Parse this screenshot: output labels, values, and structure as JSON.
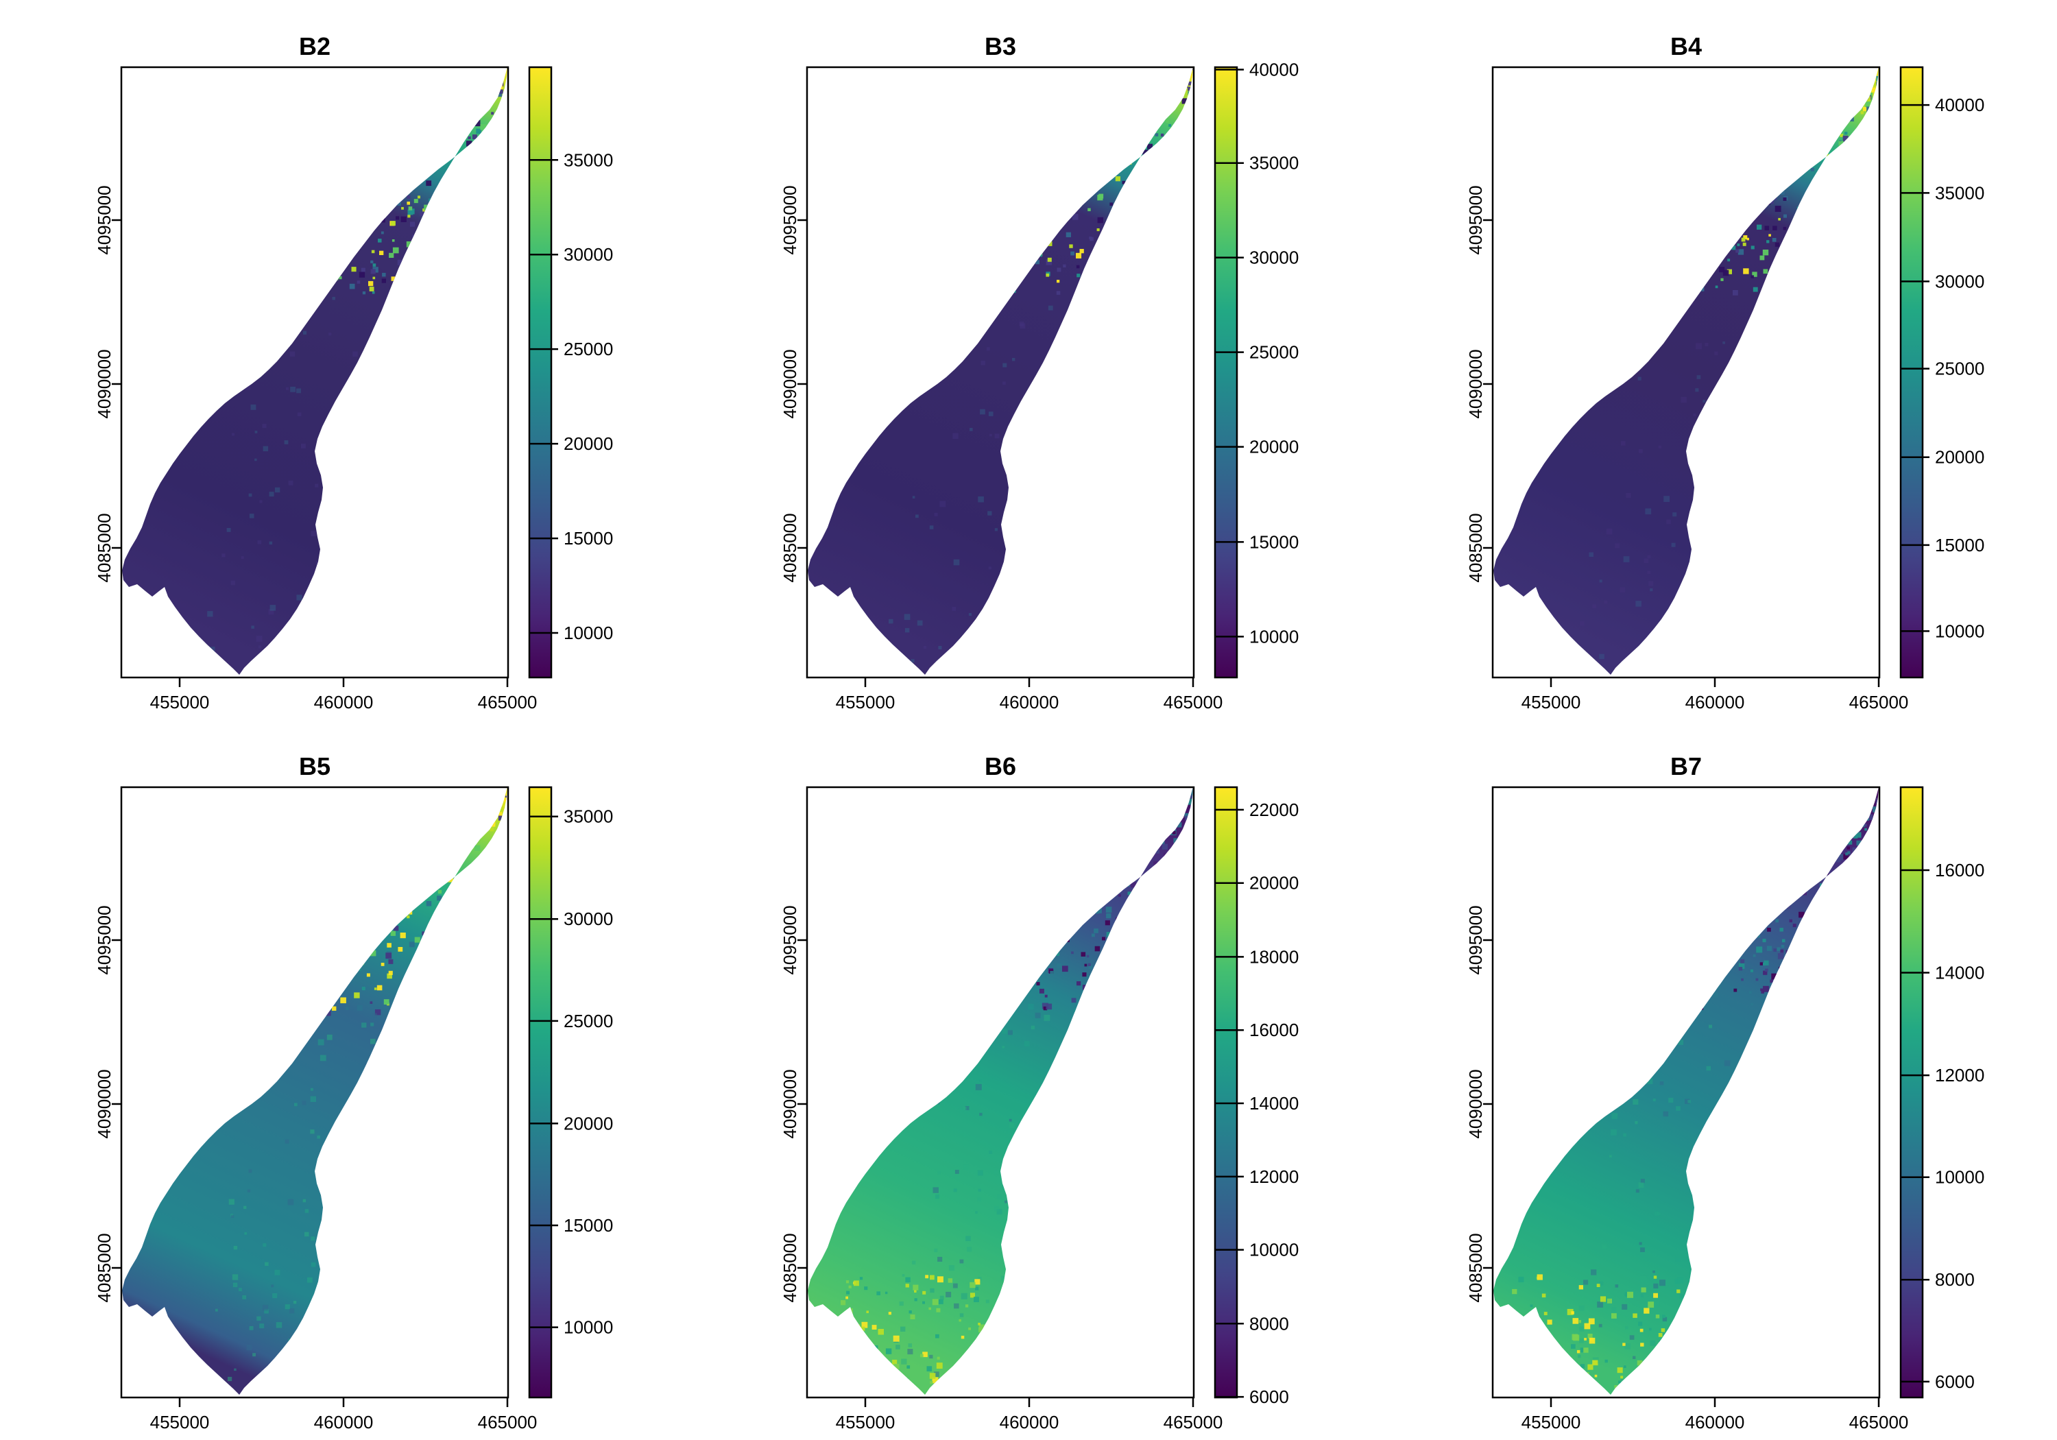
{
  "figure": {
    "title": "",
    "background": "#ffffff",
    "palette_name": "viridis",
    "grid": {
      "rows": 2,
      "cols": 3
    }
  },
  "axes": {
    "x_labels": [
      "455000",
      "460000",
      "465000"
    ],
    "y_labels": [
      "4095000",
      "4090000",
      "4085000"
    ]
  },
  "viridis_stops_top_to_bottom": [
    "#fde725",
    "#bddf26",
    "#7ad151",
    "#44bf70",
    "#22a884",
    "#21918c",
    "#2a788e",
    "#355f8d",
    "#414487",
    "#482475",
    "#440154"
  ],
  "panels": [
    {
      "id": "b2",
      "title": "B2",
      "colorbar_ticks": [
        [
          "35000",
          0.152
        ],
        [
          "30000",
          0.307
        ],
        [
          "25000",
          0.462
        ],
        [
          "20000",
          0.617
        ],
        [
          "15000",
          0.772
        ],
        [
          "10000",
          0.927
        ]
      ],
      "map_gradient": [
        [
          0,
          "#f8e621"
        ],
        [
          0.045,
          "#a8db34"
        ],
        [
          0.1,
          "#4ac16d"
        ],
        [
          0.155,
          "#1fa187"
        ],
        [
          0.21,
          "#277f8e"
        ],
        [
          0.28,
          "#3b2e6e"
        ],
        [
          0.55,
          "#372a68"
        ],
        [
          0.8,
          "#342767"
        ],
        [
          1,
          "#3c2d70"
        ]
      ],
      "speckles": [
        {
          "region": "arm",
          "count": 150,
          "colors": [
            "#fde725",
            "#bddf26",
            "#5ec962",
            "#21918c",
            "#31688e",
            "#443983",
            "#2d1160"
          ],
          "opacity": 0.95
        },
        {
          "region": "body",
          "count": 55,
          "colors": [
            "#453581",
            "#31688e"
          ],
          "opacity": 0.4
        }
      ]
    },
    {
      "id": "b3",
      "title": "B3",
      "colorbar_ticks": [
        [
          "40000",
          0.004
        ],
        [
          "35000",
          0.157
        ],
        [
          "30000",
          0.312
        ],
        [
          "25000",
          0.467
        ],
        [
          "20000",
          0.622
        ],
        [
          "15000",
          0.778
        ],
        [
          "10000",
          0.933
        ]
      ],
      "map_gradient": [
        [
          0,
          "#f8e621"
        ],
        [
          0.045,
          "#a8db34"
        ],
        [
          0.1,
          "#4ac16d"
        ],
        [
          0.155,
          "#1fa187"
        ],
        [
          0.21,
          "#277f8e"
        ],
        [
          0.28,
          "#3a2c6f"
        ],
        [
          0.55,
          "#382a69"
        ],
        [
          0.8,
          "#352768"
        ],
        [
          1,
          "#3c2d70"
        ]
      ],
      "speckles": [
        {
          "region": "arm",
          "count": 150,
          "colors": [
            "#fde725",
            "#bddf26",
            "#5ec962",
            "#21918c",
            "#31688e",
            "#443983",
            "#2d1160"
          ],
          "opacity": 0.95
        },
        {
          "region": "body",
          "count": 55,
          "colors": [
            "#453581",
            "#31688e"
          ],
          "opacity": 0.4
        }
      ]
    },
    {
      "id": "b4",
      "title": "B4",
      "colorbar_ticks": [
        [
          "40000",
          0.062
        ],
        [
          "35000",
          0.206
        ],
        [
          "30000",
          0.351
        ],
        [
          "25000",
          0.494
        ],
        [
          "20000",
          0.639
        ],
        [
          "15000",
          0.783
        ],
        [
          "10000",
          0.924
        ]
      ],
      "map_gradient": [
        [
          0,
          "#f6e51f"
        ],
        [
          0.05,
          "#b5de2b"
        ],
        [
          0.105,
          "#54c568"
        ],
        [
          0.16,
          "#21a585"
        ],
        [
          0.215,
          "#2a788e"
        ],
        [
          0.285,
          "#3a2a6b"
        ],
        [
          0.55,
          "#382967"
        ],
        [
          0.8,
          "#362a6d"
        ],
        [
          1,
          "#3e3175"
        ]
      ],
      "speckles": [
        {
          "region": "arm",
          "count": 150,
          "colors": [
            "#fde725",
            "#bddf26",
            "#5ec962",
            "#21918c",
            "#31688e",
            "#443983",
            "#2d1160"
          ],
          "opacity": 0.95
        },
        {
          "region": "body",
          "count": 55,
          "colors": [
            "#46327e",
            "#355f8d"
          ],
          "opacity": 0.4
        }
      ]
    },
    {
      "id": "b5",
      "title": "B5",
      "colorbar_ticks": [
        [
          "35000",
          0.048
        ],
        [
          "30000",
          0.216
        ],
        [
          "25000",
          0.383
        ],
        [
          "20000",
          0.551
        ],
        [
          "15000",
          0.718
        ],
        [
          "10000",
          0.885
        ]
      ],
      "map_gradient": [
        [
          0,
          "#f8e621"
        ],
        [
          0.05,
          "#bddf26"
        ],
        [
          0.11,
          "#6ece58"
        ],
        [
          0.18,
          "#2ab07f"
        ],
        [
          0.27,
          "#21918c"
        ],
        [
          0.42,
          "#31688e"
        ],
        [
          0.62,
          "#2a788e"
        ],
        [
          0.85,
          "#24868e"
        ],
        [
          0.96,
          "#355f8d"
        ],
        [
          1,
          "#3b2d6e"
        ]
      ],
      "speckles": [
        {
          "region": "arm",
          "count": 150,
          "colors": [
            "#fde725",
            "#bddf26",
            "#5ec962",
            "#21918c",
            "#2c728e",
            "#443983"
          ],
          "opacity": 0.95
        },
        {
          "region": "body",
          "count": 85,
          "colors": [
            "#22a884",
            "#2ab07f",
            "#31688e",
            "#1fa187"
          ],
          "opacity": 0.5
        }
      ]
    },
    {
      "id": "b6",
      "title": "B6",
      "colorbar_ticks": [
        [
          "22000",
          0.037
        ],
        [
          "20000",
          0.157
        ],
        [
          "18000",
          0.278
        ],
        [
          "16000",
          0.398
        ],
        [
          "14000",
          0.518
        ],
        [
          "12000",
          0.638
        ],
        [
          "10000",
          0.758
        ],
        [
          "8000",
          0.879
        ],
        [
          "6000",
          0.999
        ]
      ],
      "map_gradient": [
        [
          0,
          "#440a5c"
        ],
        [
          0.12,
          "#472f7d"
        ],
        [
          0.25,
          "#3b518b"
        ],
        [
          0.38,
          "#26828e"
        ],
        [
          0.55,
          "#21a585"
        ],
        [
          0.75,
          "#2db27d"
        ],
        [
          0.9,
          "#44bf70"
        ],
        [
          1,
          "#58c765"
        ]
      ],
      "speckles": [
        {
          "region": "arm",
          "count": 150,
          "colors": [
            "#440154",
            "#482475",
            "#414487",
            "#2a788e",
            "#21918c"
          ],
          "opacity": 0.9
        },
        {
          "region": "body",
          "count": 90,
          "colors": [
            "#27ad81",
            "#1fa187",
            "#31688e"
          ],
          "opacity": 0.5
        },
        {
          "region": "south",
          "count": 95,
          "colors": [
            "#fde725",
            "#bddf26",
            "#7ad151",
            "#22a884"
          ],
          "opacity": 0.9
        }
      ]
    },
    {
      "id": "b7",
      "title": "B7",
      "colorbar_ticks": [
        [
          "16000",
          0.136
        ],
        [
          "14000",
          0.304
        ],
        [
          "12000",
          0.472
        ],
        [
          "10000",
          0.639
        ],
        [
          "8000",
          0.807
        ],
        [
          "6000",
          0.974
        ]
      ],
      "map_gradient": [
        [
          0,
          "#450b5c"
        ],
        [
          0.12,
          "#462d7c"
        ],
        [
          0.25,
          "#3a538b"
        ],
        [
          0.38,
          "#2c728e"
        ],
        [
          0.58,
          "#24868e"
        ],
        [
          0.78,
          "#21a585"
        ],
        [
          0.92,
          "#2db27d"
        ],
        [
          1,
          "#40bd72"
        ]
      ],
      "speckles": [
        {
          "region": "arm",
          "count": 150,
          "colors": [
            "#440154",
            "#482475",
            "#414487",
            "#2a788e",
            "#21918c"
          ],
          "opacity": 0.9
        },
        {
          "region": "body",
          "count": 90,
          "colors": [
            "#27ad81",
            "#21a585",
            "#31688e"
          ],
          "opacity": 0.5
        },
        {
          "region": "south",
          "count": 95,
          "colors": [
            "#fde725",
            "#bddf26",
            "#7ad151",
            "#22a884"
          ],
          "opacity": 0.9
        }
      ]
    }
  ],
  "chart_data": [
    {
      "type": "heatmap",
      "title": "B2",
      "xlabel": "",
      "ylabel": "",
      "x_ticks": [
        455000,
        460000,
        465000
      ],
      "y_ticks": [
        4085000,
        4090000,
        4095000
      ],
      "colorbar_ticks": [
        10000,
        15000,
        20000,
        25000,
        30000,
        35000
      ],
      "value_range_est": [
        7600,
        39900
      ],
      "palette": "viridis",
      "legend_position": "right-colorbar",
      "grid": false,
      "description": "Raster map of watershed reflectance band B2; dark purple low values over main basin, bright yellow-green high values in northeast arm"
    },
    {
      "type": "heatmap",
      "title": "B3",
      "xlabel": "",
      "ylabel": "",
      "x_ticks": [
        455000,
        460000,
        465000
      ],
      "y_ticks": [
        4085000,
        4090000,
        4095000
      ],
      "colorbar_ticks": [
        10000,
        15000,
        20000,
        25000,
        30000,
        35000,
        40000
      ],
      "value_range_est": [
        7800,
        40100
      ],
      "palette": "viridis",
      "legend_position": "right-colorbar",
      "grid": false,
      "description": "Raster map of watershed reflectance band B3; dark basin body, bright northeast arm"
    },
    {
      "type": "heatmap",
      "title": "B4",
      "xlabel": "",
      "ylabel": "",
      "x_ticks": [
        455000,
        460000,
        465000
      ],
      "y_ticks": [
        4085000,
        4090000,
        4095000
      ],
      "colorbar_ticks": [
        10000,
        15000,
        20000,
        25000,
        30000,
        35000,
        40000
      ],
      "value_range_est": [
        7300,
        42200
      ],
      "palette": "viridis",
      "legend_position": "right-colorbar",
      "grid": false,
      "description": "Raster map of watershed reflectance band B4; dark basin body, bright northeast arm"
    },
    {
      "type": "heatmap",
      "title": "B5",
      "xlabel": "",
      "ylabel": "",
      "x_ticks": [
        455000,
        460000,
        465000
      ],
      "y_ticks": [
        4085000,
        4090000,
        4095000
      ],
      "colorbar_ticks": [
        10000,
        15000,
        20000,
        25000,
        30000,
        35000
      ],
      "value_range_est": [
        6600,
        36400
      ],
      "palette": "viridis",
      "legend_position": "right-colorbar",
      "grid": false,
      "description": "Raster map of band B5; teal mid-range basin body, bright yellow-green northeast arm, dark southern tip"
    },
    {
      "type": "heatmap",
      "title": "B6",
      "xlabel": "",
      "ylabel": "",
      "x_ticks": [
        455000,
        460000,
        465000
      ],
      "y_ticks": [
        4085000,
        4090000,
        4095000
      ],
      "colorbar_ticks": [
        6000,
        8000,
        10000,
        12000,
        14000,
        16000,
        18000,
        20000,
        22000
      ],
      "value_range_est": [
        6000,
        22600
      ],
      "palette": "viridis",
      "legend_position": "right-colorbar",
      "grid": false,
      "description": "Raster map of band B6; green-teal basin body with bright yellow-green southern speckles, dark purple northeast arm"
    },
    {
      "type": "heatmap",
      "title": "B7",
      "xlabel": "",
      "ylabel": "",
      "x_ticks": [
        455000,
        460000,
        465000
      ],
      "y_ticks": [
        4085000,
        4090000,
        4095000
      ],
      "colorbar_ticks": [
        6000,
        8000,
        10000,
        12000,
        14000,
        16000
      ],
      "value_range_est": [
        5700,
        17600
      ],
      "palette": "viridis",
      "legend_position": "right-colorbar",
      "grid": false,
      "description": "Raster map of band B7; teal-green basin body with bright southern speckles, dark purple northeast arm"
    }
  ]
}
